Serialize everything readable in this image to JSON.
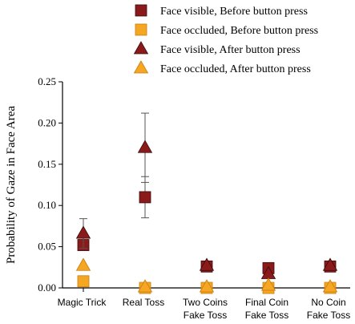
{
  "chart_data": {
    "type": "scatter",
    "ylabel": "Probability of Gaze in Face Area",
    "ylim": [
      0,
      0.25
    ],
    "yticks": [
      "0.00",
      "0.05",
      "0.10",
      "0.15",
      "0.20",
      "0.25"
    ],
    "categories": [
      [
        "Magic Trick"
      ],
      [
        "Real Toss"
      ],
      [
        "Two Coins",
        "Fake Toss"
      ],
      [
        "Final Coin",
        "Fake Toss"
      ],
      [
        "No Coin",
        "Fake Toss"
      ]
    ],
    "legend_position": "top",
    "series": [
      {
        "name": "Face visible, Before button press",
        "marker": "square",
        "color": "#8b1a1a",
        "values": [
          0.052,
          0.11,
          0.026,
          0.024,
          0.026
        ],
        "errors": [
          0.005,
          0.025,
          0.0,
          0.0,
          0.0
        ]
      },
      {
        "name": "Face occluded, Before button press",
        "marker": "square",
        "color": "#f5a623",
        "values": [
          0.008,
          0.0,
          0.0,
          0.0,
          0.0
        ],
        "errors": [
          0.0,
          0.0,
          0.0,
          0.0,
          0.0
        ]
      },
      {
        "name": "Face visible, After button press",
        "marker": "triangle",
        "color": "#8b1a1a",
        "values": [
          0.066,
          0.17,
          0.027,
          0.017,
          0.027
        ],
        "errors": [
          0.018,
          0.042,
          0.0,
          0.0,
          0.0
        ]
      },
      {
        "name": "Face occluded, After button press",
        "marker": "triangle",
        "color": "#f5a623",
        "values": [
          0.027,
          0.001,
          0.001,
          0.003,
          0.001
        ],
        "errors": [
          0.0,
          0.0,
          0.0,
          0.0,
          0.0
        ]
      }
    ]
  }
}
